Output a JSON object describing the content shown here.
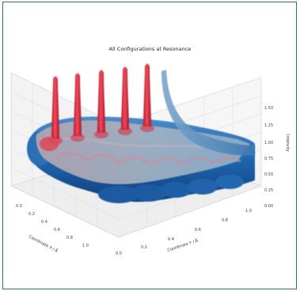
{
  "chart_data": {
    "type": "surface",
    "title": "All Configurations at Resonance",
    "xlabel": "Coordinate X / Å",
    "ylabel": "Coordinate Y / Å",
    "zlabel": "Intensity",
    "x_ticks": [
      "0.0",
      "0.2",
      "0.4",
      "0.6",
      "0.8",
      "1.0"
    ],
    "y_ticks": [
      "0.0",
      "0.2",
      "0.4",
      "0.6",
      "0.8",
      "1.0"
    ],
    "z_ticks": [
      "0.00",
      "0.25",
      "0.50",
      "0.75",
      "1.00",
      "1.25",
      "1.50"
    ],
    "zlim": [
      0,
      1.5
    ],
    "peaks": {
      "count": 5,
      "height": 1.5,
      "color": "#d7263d"
    },
    "surface_colors": {
      "low": "#1f5fa8",
      "mid": "#7fa8c9",
      "high": "#d7263d"
    },
    "grid": true
  }
}
